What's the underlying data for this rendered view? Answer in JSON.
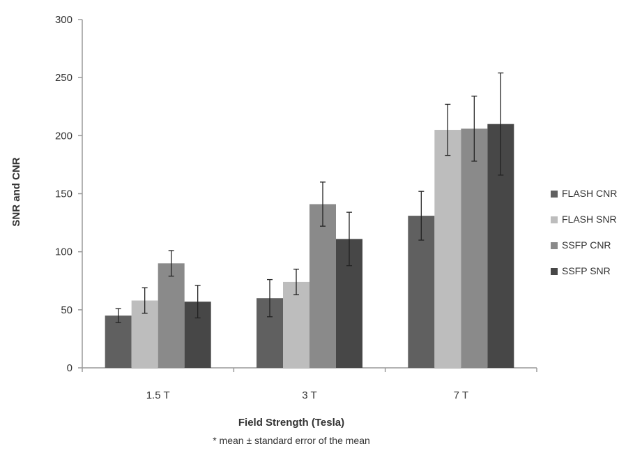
{
  "chart_data": {
    "type": "bar",
    "categories": [
      "1.5 T",
      "3 T",
      "7 T"
    ],
    "series": [
      {
        "name": "FLASH CNR",
        "values": [
          45,
          60,
          131
        ],
        "errors": [
          6,
          16,
          21
        ],
        "color": "#606060"
      },
      {
        "name": "FLASH SNR",
        "values": [
          58,
          74,
          205
        ],
        "errors": [
          11,
          11,
          22
        ],
        "color": "#bdbdbd"
      },
      {
        "name": "SSFP CNR",
        "values": [
          90,
          141,
          206
        ],
        "errors": [
          11,
          19,
          28
        ],
        "color": "#8a8a8a"
      },
      {
        "name": "SSFP SNR",
        "values": [
          57,
          111,
          210
        ],
        "errors": [
          14,
          23,
          44
        ],
        "color": "#474747"
      }
    ],
    "xlabel": "Field Strength (Tesla)",
    "ylabel": "SNR and CNR",
    "ylim": [
      0,
      300
    ],
    "yticks": [
      "0",
      "50",
      "100",
      "150",
      "200",
      "250",
      "300"
    ],
    "note": "* mean ± standard error of the mean",
    "legend_position": "right",
    "grid": false
  }
}
